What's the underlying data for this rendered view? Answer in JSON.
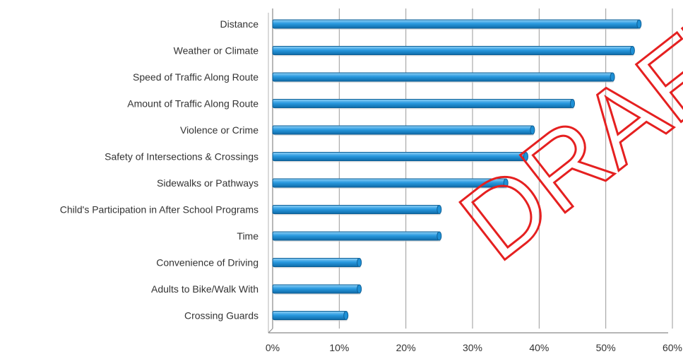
{
  "chart_data": {
    "type": "bar",
    "orientation": "horizontal",
    "title": "",
    "xlabel": "",
    "ylabel": "",
    "categories": [
      "Distance",
      "Weather or Climate",
      "Speed of Traffic Along Route",
      "Amount of Traffic Along Route",
      "Violence or Crime",
      "Safety of Intersections & Crossings",
      "Sidewalks or Pathways",
      "Child's Participation in After School Programs",
      "Time",
      "Convenience of Driving",
      "Adults to Bike/Walk With",
      "Crossing Guards"
    ],
    "values": [
      55,
      54,
      51,
      45,
      39,
      38,
      35,
      25,
      25,
      13,
      13,
      11
    ],
    "value_unit": "%",
    "xlim": [
      0,
      60
    ],
    "x_ticks": [
      "0%",
      "10%",
      "20%",
      "30%",
      "40%",
      "50%",
      "60%"
    ],
    "grid": "vertical",
    "bar_color": "#1e90d6",
    "bar_edge_color": "#0f5f95"
  },
  "watermark": {
    "text": "DRAFT",
    "color": "#e52020"
  }
}
